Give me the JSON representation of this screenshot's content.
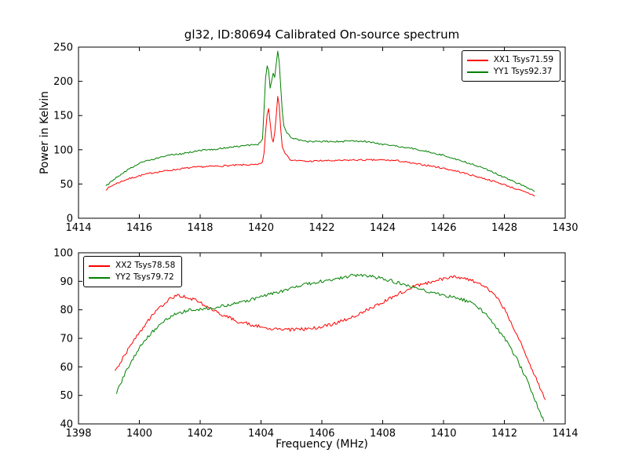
{
  "figure": {
    "background": "#ffffff",
    "frame_color": "#000000"
  },
  "chart_data": [
    {
      "type": "line",
      "title": "gl32, ID:80694 Calibrated On-source spectrum",
      "xlabel": "",
      "ylabel": "Power in Kelvin",
      "xlim": [
        1414,
        1430
      ],
      "ylim": [
        0,
        250
      ],
      "xticks": [
        1414,
        1416,
        1418,
        1420,
        1422,
        1424,
        1426,
        1428,
        1430
      ],
      "yticks": [
        0,
        50,
        100,
        150,
        200,
        250
      ],
      "grid": false,
      "legend_position": "upper right",
      "noise": 1.2,
      "series": [
        {
          "name": "XX1 Tsys71.59",
          "color": "#ff0000",
          "points": [
            [
              1414.9,
              42
            ],
            [
              1415.2,
              50
            ],
            [
              1415.6,
              57
            ],
            [
              1416,
              62
            ],
            [
              1416.5,
              67
            ],
            [
              1417,
              70
            ],
            [
              1417.5,
              73
            ],
            [
              1418,
              75
            ],
            [
              1418.5,
              76
            ],
            [
              1419,
              77
            ],
            [
              1419.5,
              78
            ],
            [
              1419.9,
              78
            ],
            [
              1420.05,
              82
            ],
            [
              1420.1,
              95
            ],
            [
              1420.15,
              125
            ],
            [
              1420.2,
              152
            ],
            [
              1420.25,
              160
            ],
            [
              1420.3,
              140
            ],
            [
              1420.35,
              118
            ],
            [
              1420.4,
              112
            ],
            [
              1420.45,
              125
            ],
            [
              1420.5,
              150
            ],
            [
              1420.55,
              178
            ],
            [
              1420.6,
              165
            ],
            [
              1420.65,
              130
            ],
            [
              1420.7,
              105
            ],
            [
              1420.8,
              95
            ],
            [
              1420.9,
              88
            ],
            [
              1421,
              85
            ],
            [
              1421.5,
              83
            ],
            [
              1422,
              84
            ],
            [
              1422.5,
              84
            ],
            [
              1423,
              85
            ],
            [
              1423.5,
              85
            ],
            [
              1424,
              85
            ],
            [
              1424.5,
              84
            ],
            [
              1425,
              80
            ],
            [
              1425.5,
              77
            ],
            [
              1426,
              73
            ],
            [
              1426.5,
              68
            ],
            [
              1427,
              62
            ],
            [
              1427.5,
              56
            ],
            [
              1428,
              49
            ],
            [
              1428.5,
              41
            ],
            [
              1429,
              33
            ]
          ]
        },
        {
          "name": "YY1 Tsys92.37",
          "color": "#008000",
          "points": [
            [
              1414.9,
              47
            ],
            [
              1415.2,
              58
            ],
            [
              1415.6,
              70
            ],
            [
              1416,
              80
            ],
            [
              1416.5,
              87
            ],
            [
              1417,
              92
            ],
            [
              1417.5,
              95
            ],
            [
              1418,
              99
            ],
            [
              1418.5,
              101
            ],
            [
              1419,
              104
            ],
            [
              1419.5,
              106
            ],
            [
              1419.9,
              108
            ],
            [
              1420.05,
              115
            ],
            [
              1420.1,
              160
            ],
            [
              1420.15,
              205
            ],
            [
              1420.2,
              222
            ],
            [
              1420.25,
              215
            ],
            [
              1420.3,
              190
            ],
            [
              1420.35,
              200
            ],
            [
              1420.4,
              212
            ],
            [
              1420.45,
              205
            ],
            [
              1420.5,
              225
            ],
            [
              1420.55,
              245
            ],
            [
              1420.6,
              228
            ],
            [
              1420.65,
              190
            ],
            [
              1420.7,
              155
            ],
            [
              1420.75,
              135
            ],
            [
              1420.85,
              125
            ],
            [
              1421,
              117
            ],
            [
              1421.5,
              112
            ],
            [
              1422,
              112
            ],
            [
              1422.5,
              112
            ],
            [
              1423,
              113
            ],
            [
              1423.5,
              112
            ],
            [
              1424,
              108
            ],
            [
              1424.5,
              105
            ],
            [
              1425,
              102
            ],
            [
              1425.5,
              97
            ],
            [
              1426,
              92
            ],
            [
              1426.5,
              85
            ],
            [
              1427,
              78
            ],
            [
              1427.5,
              70
            ],
            [
              1428,
              60
            ],
            [
              1428.5,
              50
            ],
            [
              1429,
              40
            ]
          ]
        }
      ]
    },
    {
      "type": "line",
      "title": "",
      "xlabel": "Frequency (MHz)",
      "ylabel": "",
      "xlim": [
        1398,
        1414
      ],
      "ylim": [
        40,
        100
      ],
      "xticks": [
        1398,
        1400,
        1402,
        1404,
        1406,
        1408,
        1410,
        1412,
        1414
      ],
      "yticks": [
        40,
        50,
        60,
        70,
        80,
        90,
        100
      ],
      "grid": false,
      "legend_position": "upper left",
      "noise": 0.6,
      "series": [
        {
          "name": "XX2 Tsys78.58",
          "color": "#ff0000",
          "points": [
            [
              1399.2,
              58
            ],
            [
              1399.5,
              64
            ],
            [
              1400,
              72
            ],
            [
              1400.5,
              79
            ],
            [
              1400.8,
              82
            ],
            [
              1401,
              84
            ],
            [
              1401.3,
              85
            ],
            [
              1401.6,
              84.5
            ],
            [
              1402,
              82.5
            ],
            [
              1402.4,
              80
            ],
            [
              1402.8,
              78
            ],
            [
              1403.2,
              76
            ],
            [
              1403.6,
              75
            ],
            [
              1404,
              74
            ],
            [
              1404.5,
              73.2
            ],
            [
              1405,
              73
            ],
            [
              1405.5,
              73.3
            ],
            [
              1406,
              74
            ],
            [
              1406.5,
              75.5
            ],
            [
              1407,
              77.5
            ],
            [
              1407.5,
              80
            ],
            [
              1408,
              82.5
            ],
            [
              1408.5,
              85.5
            ],
            [
              1409,
              88
            ],
            [
              1409.5,
              89.5
            ],
            [
              1410,
              91
            ],
            [
              1410.3,
              91.5
            ],
            [
              1410.7,
              91
            ],
            [
              1411,
              90
            ],
            [
              1411.4,
              88
            ],
            [
              1411.7,
              85
            ],
            [
              1412,
              80.5
            ],
            [
              1412.3,
              74
            ],
            [
              1412.6,
              67
            ],
            [
              1413,
              57
            ],
            [
              1413.35,
              48
            ]
          ]
        },
        {
          "name": "YY2 Tsys79.72",
          "color": "#008000",
          "points": [
            [
              1399.25,
              51
            ],
            [
              1399.5,
              57
            ],
            [
              1400,
              67
            ],
            [
              1400.4,
              72
            ],
            [
              1400.8,
              76
            ],
            [
              1401.2,
              78.5
            ],
            [
              1401.6,
              79.8
            ],
            [
              1402,
              80.3
            ],
            [
              1402.5,
              80.8
            ],
            [
              1403,
              82
            ],
            [
              1403.5,
              83
            ],
            [
              1404,
              84.5
            ],
            [
              1404.5,
              86
            ],
            [
              1405,
              87.5
            ],
            [
              1405.5,
              89
            ],
            [
              1406,
              90
            ],
            [
              1406.5,
              91
            ],
            [
              1407,
              92
            ],
            [
              1407.5,
              92
            ],
            [
              1408,
              91
            ],
            [
              1408.5,
              89.5
            ],
            [
              1409,
              88
            ],
            [
              1409.5,
              86.5
            ],
            [
              1410,
              85
            ],
            [
              1410.5,
              84
            ],
            [
              1410.8,
              83
            ],
            [
              1411.2,
              80.5
            ],
            [
              1411.6,
              76
            ],
            [
              1412,
              70
            ],
            [
              1412.4,
              63
            ],
            [
              1412.8,
              54
            ],
            [
              1413.1,
              46
            ],
            [
              1413.3,
              41
            ]
          ]
        }
      ]
    }
  ]
}
